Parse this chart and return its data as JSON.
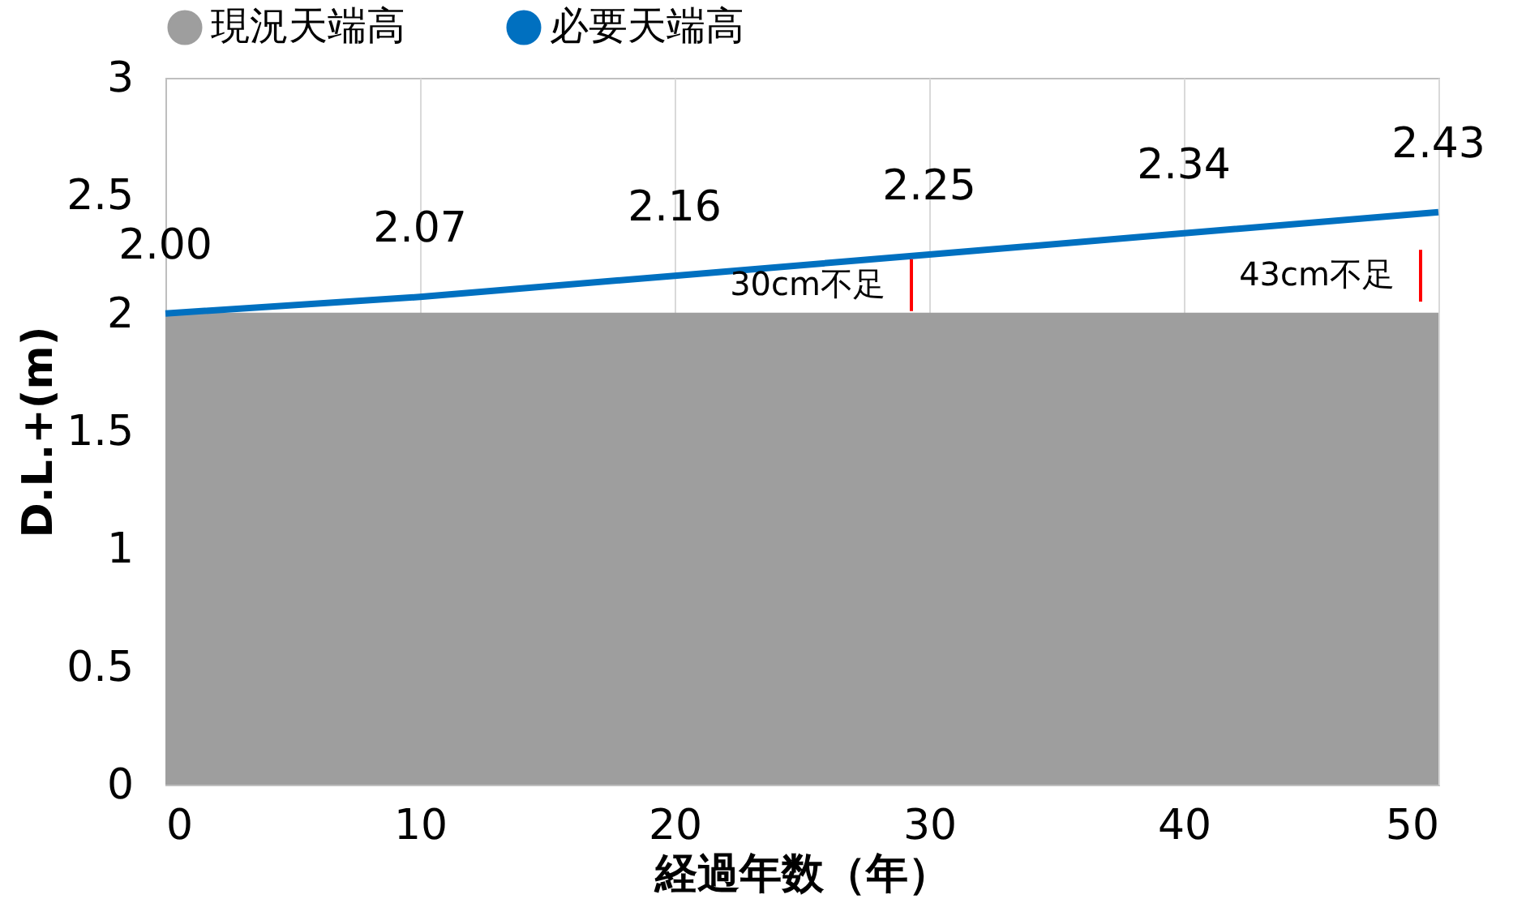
{
  "chart_data": {
    "type": "line",
    "xlabel": "経過年数（年）",
    "ylabel": "D.L.+(m)",
    "x": [
      0,
      10,
      20,
      30,
      40,
      50
    ],
    "series": [
      {
        "name": "現況天端高",
        "type": "area",
        "color": "#9e9e9e",
        "values": [
          2,
          2,
          2,
          2,
          2,
          2
        ]
      },
      {
        "name": "必要天端高",
        "color": "#0070c0",
        "values": [
          2.0,
          2.07,
          2.16,
          2.25,
          2.34,
          2.43
        ],
        "value_labels": [
          "2.00",
          "2.07",
          "2.16",
          "2.25",
          "2.34",
          "2.43"
        ]
      }
    ],
    "xlim": [
      0,
      50
    ],
    "xticks": [
      0,
      10,
      20,
      30,
      40,
      50
    ],
    "ylim": [
      0,
      3
    ],
    "yticks": [
      0,
      0.5,
      1,
      1.5,
      2,
      2.5,
      3
    ],
    "grid": "x",
    "legend": "top",
    "annotations": [
      "30cm不足",
      "43cm不足"
    ]
  }
}
